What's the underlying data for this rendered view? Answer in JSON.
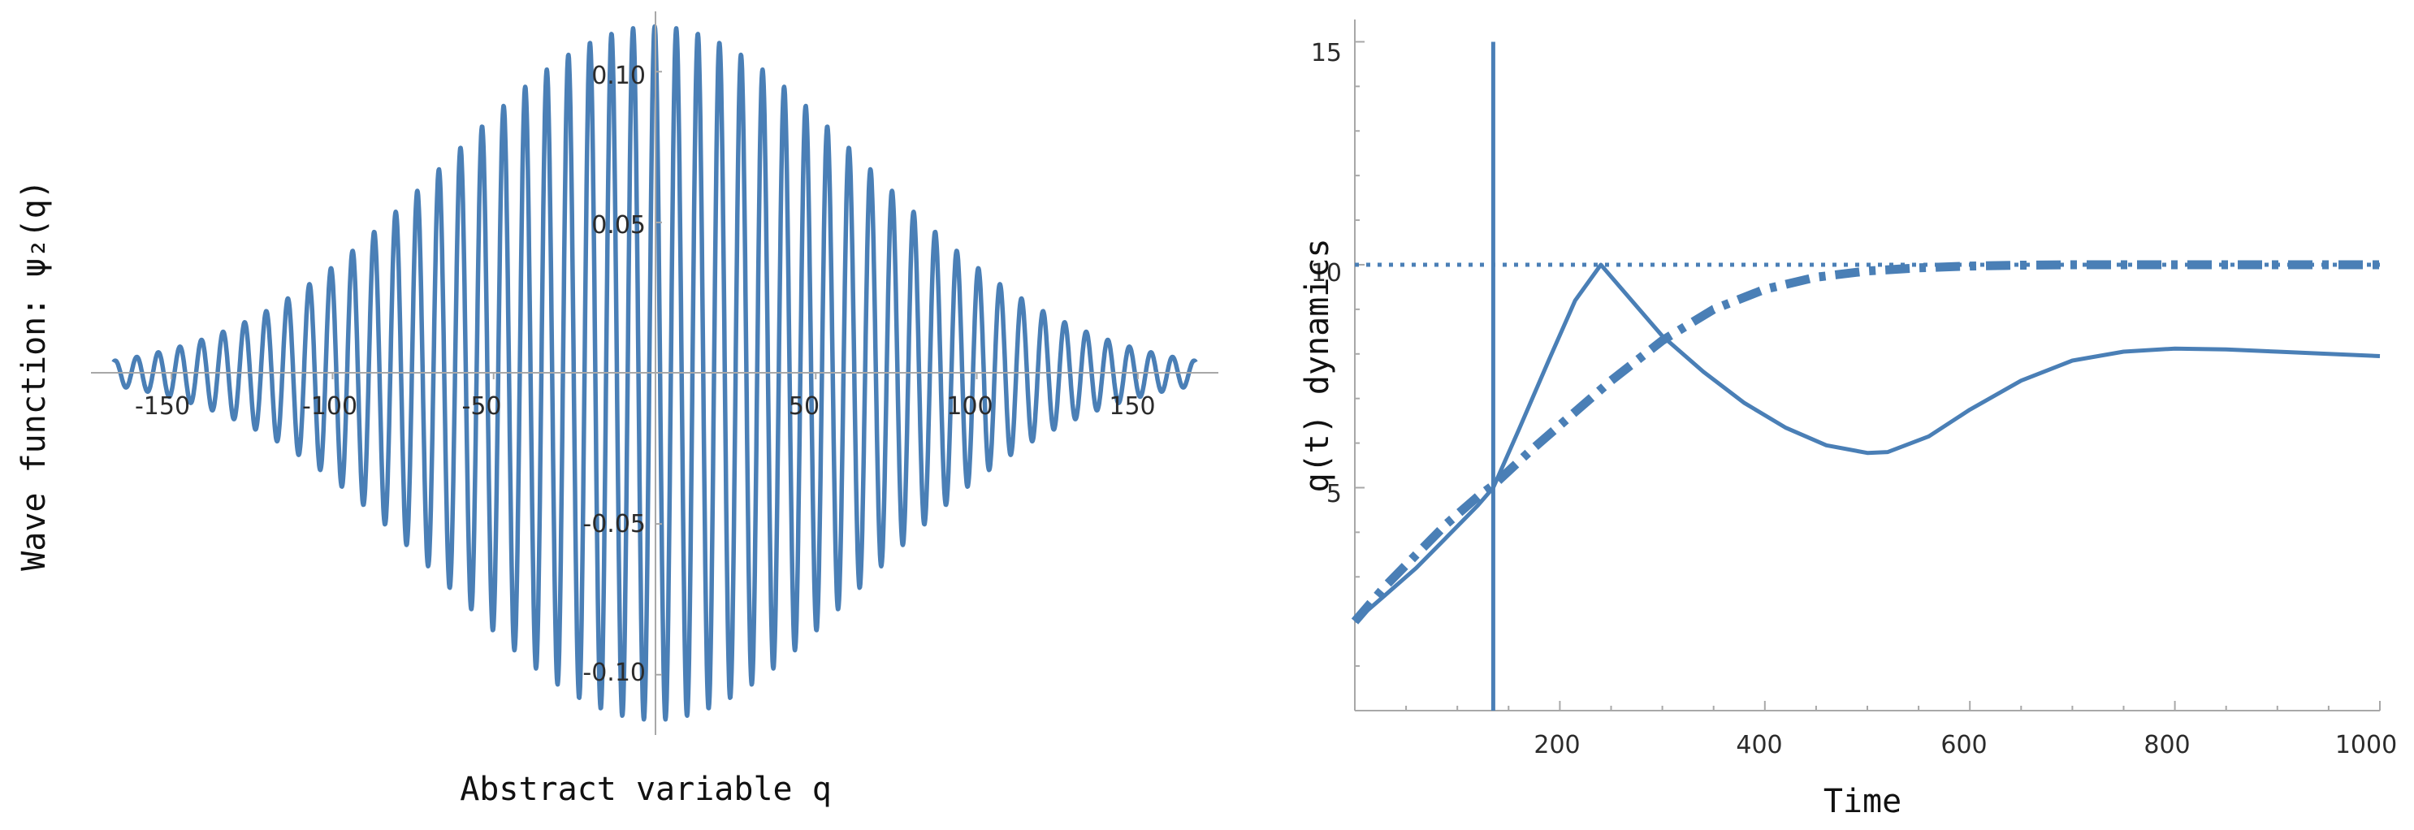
{
  "colors": {
    "series": "#4a7fb6",
    "axis": "#a8a8a8",
    "background": "#ffffff"
  },
  "chart_data": [
    {
      "type": "line",
      "title": "",
      "xlabel": "Abstract variable q",
      "ylabel": "Wave function: ψ₂(q)",
      "xlim": [
        -175,
        175
      ],
      "ylim": [
        -0.12,
        0.12
      ],
      "xticks": [
        -150,
        -100,
        -50,
        50,
        100,
        150
      ],
      "xtick_labels": [
        "-150",
        "-100",
        "-50",
        "50",
        "100",
        "150"
      ],
      "yticks": [
        0.1,
        0.05,
        -0.05,
        -0.1
      ],
      "ytick_labels": [
        "0.10",
        "0.05",
        "-0.05",
        "-0.10"
      ],
      "grid": false,
      "series": [
        {
          "function": "gaussian-modulated oscillation",
          "amplitude": 0.115,
          "envelope_sigma": 65,
          "wavelength": 6.7,
          "x_range": [
            -168,
            168
          ],
          "line_style": "solid"
        }
      ]
    },
    {
      "type": "line",
      "title": "",
      "xlabel": "Time",
      "ylabel": "q(t) dynamics",
      "xlim": [
        0,
        1000
      ],
      "ylim": [
        0,
        15.5
      ],
      "xticks": [
        200,
        400,
        600,
        800,
        1000
      ],
      "xtick_labels": [
        "200",
        "400",
        "600",
        "800",
        "1000"
      ],
      "yticks": [
        5,
        10,
        15
      ],
      "ytick_labels": [
        "5",
        "10",
        "15"
      ],
      "grid": false,
      "series": [
        {
          "line_style": "solid",
          "x": [
            0,
            30,
            60,
            90,
            120,
            135,
            160,
            190,
            215,
            240,
            270,
            300,
            340,
            380,
            420,
            460,
            500,
            520,
            560,
            600,
            650,
            700,
            750,
            800,
            850,
            900,
            950,
            1000
          ],
          "y": [
            2.0,
            2.6,
            3.2,
            3.9,
            4.6,
            5.0,
            6.3,
            7.9,
            9.2,
            10.0,
            9.2,
            8.4,
            7.6,
            6.9,
            6.35,
            5.95,
            5.78,
            5.8,
            6.15,
            6.75,
            7.4,
            7.85,
            8.05,
            8.12,
            8.1,
            8.05,
            8.0,
            7.95
          ]
        },
        {
          "line_style": "dashdot",
          "x": [
            0,
            30,
            60,
            90,
            120,
            135,
            170,
            210,
            250,
            300,
            350,
            400,
            450,
            500,
            550,
            600,
            650,
            700,
            800,
            900,
            1000
          ],
          "y": [
            2.0,
            2.8,
            3.5,
            4.2,
            4.8,
            5.05,
            5.8,
            6.6,
            7.4,
            8.3,
            9.0,
            9.45,
            9.72,
            9.86,
            9.93,
            9.97,
            9.99,
            10.0,
            10.0,
            10.0,
            10.0
          ]
        },
        {
          "line_style": "dotted",
          "x": [
            0,
            1000
          ],
          "y": [
            10,
            10
          ]
        },
        {
          "line_style": "solid",
          "orientation": "vertical",
          "x": [
            135,
            135
          ],
          "y": [
            0,
            15
          ]
        }
      ]
    }
  ]
}
